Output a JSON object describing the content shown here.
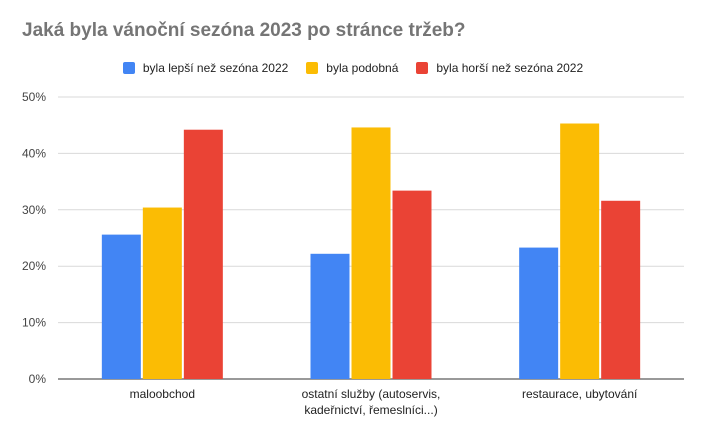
{
  "chart_data": {
    "type": "bar",
    "title": "Jaká byla vánoční sezóna 2023 po stránce tržeb?",
    "categories": [
      [
        "maloobchod"
      ],
      [
        "ostatní služby (autoservis,",
        "kadeřnictví, řemeslníci...)"
      ],
      [
        "restaurace, ubytování"
      ]
    ],
    "series": [
      {
        "name": "byla lepší než sezóna 2022",
        "color": "#4285F4",
        "values": [
          25.6,
          22.2,
          23.3
        ]
      },
      {
        "name": "byla podobná",
        "color": "#FBBC04",
        "values": [
          30.4,
          44.6,
          45.3
        ]
      },
      {
        "name": "byla horší než sezóna 2022",
        "color": "#EA4335",
        "values": [
          44.2,
          33.4,
          31.6
        ]
      }
    ],
    "ylim": [
      0,
      50
    ],
    "yticks": [
      "0%",
      "10%",
      "20%",
      "30%",
      "40%",
      "50%"
    ],
    "grid": true,
    "legend_position": "top-center"
  }
}
